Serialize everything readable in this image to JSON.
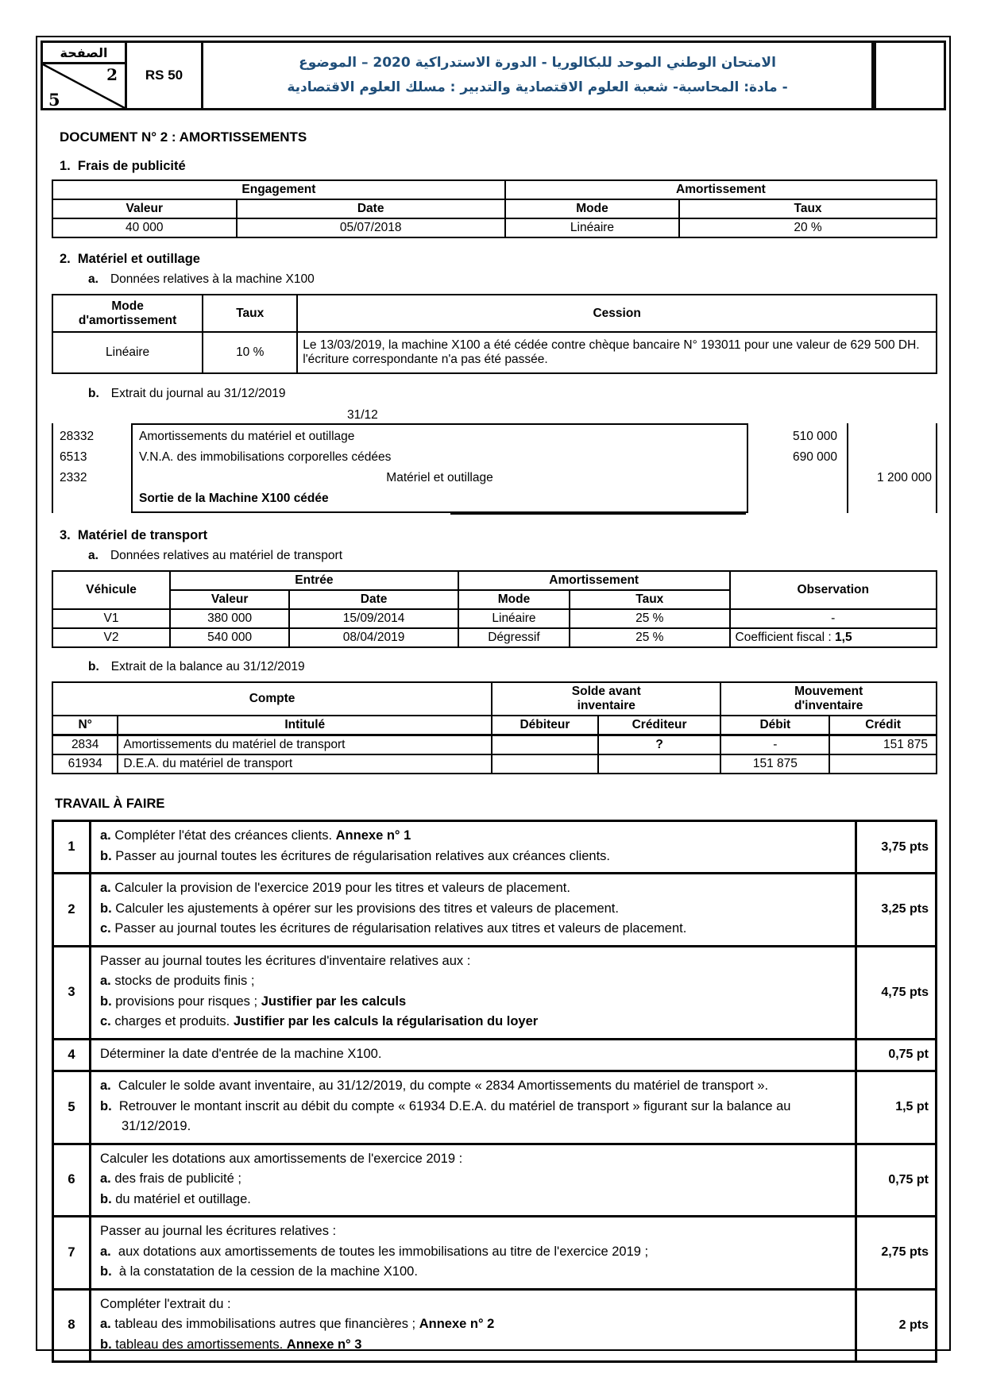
{
  "header": {
    "page_label": "الصفحة",
    "page_current": "2",
    "page_total": "5",
    "ref": "RS 50",
    "title_line1": "الامتحان الوطني الموحد للبكالوريا - الدورة الاستدراكية 2020 – الموضوع",
    "title_line2": "- مادة: المحاسبة- شعبة العلوم الاقتصادية والتدبير : مسلك العلوم الاقتصادية",
    "title_color": "#1f4e79"
  },
  "doc": {
    "title": "DOCUMENT N° 2 : AMORTISSEMENTS"
  },
  "section1": {
    "heading": "1.  Frais de publicité",
    "table": {
      "group_engagement": "Engagement",
      "group_amortissement": "Amortissement",
      "h_valeur": "Valeur",
      "h_date": "Date",
      "h_mode": "Mode",
      "h_taux": "Taux",
      "valeur": "40 000",
      "date": "05/07/2018",
      "mode": "Linéaire",
      "taux": "20 %"
    }
  },
  "section2": {
    "heading": "2.  Matériel et outillage",
    "sub_a_letter": "a.",
    "sub_a_text": "Données relatives à la machine X100",
    "machine_table": {
      "h_mode": "Mode\nd'amortissement",
      "h_taux": "Taux",
      "h_cession": "Cession",
      "mode": "Linéaire",
      "taux": "10 %",
      "cession": "Le 13/03/2019, la machine X100 a été cédée contre chèque bancaire N° 193011 pour une valeur de 629 500 DH. l'écriture correspondante n'a pas été passée."
    },
    "sub_b_letter": "b.",
    "sub_b_text": "Extrait du journal au 31/12/2019",
    "journal": {
      "date": "31/12",
      "lines": [
        {
          "account": "28332",
          "label": "Amortissements du matériel et outillage",
          "debit": "510 000",
          "credit": ""
        },
        {
          "account": "6513",
          "label": "V.N.A. des immobilisations corporelles cédées",
          "debit": "690 000",
          "credit": ""
        },
        {
          "account": "2332",
          "label": "Matériel et outillage",
          "debit": "",
          "credit": "1 200 000"
        }
      ],
      "caption": "Sortie de la Machine X100 cédée"
    }
  },
  "section3": {
    "heading": "3.  Matériel de transport",
    "sub_a_letter": "a.",
    "sub_a_text": "Données relatives au matériel de transport",
    "vehicles_table": {
      "h_vehicule": "Véhicule",
      "h_entree": "Entrée",
      "h_amortissement": "Amortissement",
      "h_observation": "Observation",
      "h_valeur": "Valeur",
      "h_date": "Date",
      "h_mode": "Mode",
      "h_taux": "Taux",
      "rows": [
        {
          "vehicule": "V1",
          "valeur": "380 000",
          "date": "15/09/2014",
          "mode": "Linéaire",
          "taux": "25 %",
          "observation": "-"
        },
        {
          "vehicule": "V2",
          "valeur": "540 000",
          "date": "08/04/2019",
          "mode": "Dégressif",
          "taux": "25 %",
          "observation_label": "Coefficient fiscal : ",
          "observation_value": "1,5"
        }
      ]
    },
    "sub_b_letter": "b.",
    "sub_b_text": "Extrait de la balance au 31/12/2019",
    "balance_table": {
      "h_compte": "Compte",
      "h_solde": "Solde avant\ninventaire",
      "h_mouvement": "Mouvement\nd'inventaire",
      "h_num": "N°",
      "h_intitule": "Intitulé",
      "h_debiteur": "Débiteur",
      "h_crediteur": "Créditeur",
      "h_debit": "Débit",
      "h_credit": "Crédit",
      "rows": [
        {
          "num": "2834",
          "intitule": "Amortissements du matériel de transport",
          "debiteur": "",
          "crediteur": "?",
          "debit": "-",
          "credit": "151 875"
        },
        {
          "num": "61934",
          "intitule": "D.E.A. du matériel de transport",
          "debiteur": "",
          "crediteur": "",
          "debit": "151 875",
          "credit": ""
        }
      ]
    }
  },
  "travail": {
    "heading": "TRAVAIL À FAIRE",
    "rows": [
      {
        "num": "1",
        "points": "3,75 pts",
        "lines": [
          [
            {
              "t": "a.",
              "b": 1
            },
            {
              "t": " Compléter l'état des créances clients. "
            },
            {
              "t": "Annexe n° 1",
              "b": 1
            }
          ],
          [
            {
              "t": "b.",
              "b": 1
            },
            {
              "t": " Passer au journal toutes les écritures de régularisation relatives aux créances clients."
            }
          ]
        ]
      },
      {
        "num": "2",
        "points": "3,25 pts",
        "lines": [
          [
            {
              "t": "a.",
              "b": 1
            },
            {
              "t": " Calculer la provision de l'exercice 2019 pour les titres et valeurs de placement."
            }
          ],
          [
            {
              "t": "b.",
              "b": 1
            },
            {
              "t": " Calculer les ajustements à opérer sur les provisions des titres et valeurs de placement."
            }
          ],
          [
            {
              "t": "c.",
              "b": 1
            },
            {
              "t": " Passer au journal toutes les écritures de régularisation relatives aux titres et valeurs de placement."
            }
          ]
        ]
      },
      {
        "num": "3",
        "points": "4,75 pts",
        "lines": [
          [
            {
              "t": "Passer au journal toutes les écritures d'inventaire relatives aux :"
            }
          ],
          [
            {
              "t": "a.",
              "b": 1
            },
            {
              "t": " stocks de produits finis ;"
            }
          ],
          [
            {
              "t": "b.",
              "b": 1
            },
            {
              "t": " provisions pour risques ; "
            },
            {
              "t": "Justifier par les calculs",
              "b": 1
            }
          ],
          [
            {
              "t": "c.",
              "b": 1
            },
            {
              "t": " charges et produits. "
            },
            {
              "t": "Justifier par les calculs la régularisation du loyer",
              "b": 1
            }
          ]
        ]
      },
      {
        "num": "4",
        "points": "0,75 pt",
        "lines": [
          [
            {
              "t": "Déterminer la date d'entrée de la machine X100."
            }
          ]
        ]
      },
      {
        "num": "5",
        "points": "1,5 pt",
        "lines": [
          [
            {
              "t": "a.",
              "b": 1
            },
            {
              "t": "  Calculer le solde avant inventaire, au 31/12/2019, du compte « 2834 Amortissements du matériel de transport »."
            }
          ],
          [
            {
              "t": "b.",
              "b": 1
            },
            {
              "t": "  Retrouver le montant inscrit au débit du compte « 61934 D.E.A. du matériel de transport » figurant sur la balance au 31/12/2019."
            }
          ]
        ]
      },
      {
        "num": "6",
        "points": "0,75 pt",
        "lines": [
          [
            {
              "t": "Calculer les dotations aux amortissements de l'exercice 2019 :"
            }
          ],
          [
            {
              "t": "a.",
              "b": 1
            },
            {
              "t": " des frais de publicité ;"
            }
          ],
          [
            {
              "t": "b.",
              "b": 1
            },
            {
              "t": " du matériel et outillage."
            }
          ]
        ]
      },
      {
        "num": "7",
        "points": "2,75 pts",
        "lines": [
          [
            {
              "t": "Passer au journal les écritures relatives :"
            }
          ],
          [
            {
              "t": "a.",
              "b": 1
            },
            {
              "t": "  aux dotations aux amortissements de toutes les immobilisations au titre de l'exercice 2019 ;"
            }
          ],
          [
            {
              "t": "b.",
              "b": 1
            },
            {
              "t": "  à la constatation de la cession de la machine X100."
            }
          ]
        ]
      },
      {
        "num": "8",
        "points": "2 pts",
        "lines": [
          [
            {
              "t": "Compléter l'extrait du :"
            }
          ],
          [
            {
              "t": "a.",
              "b": 1
            },
            {
              "t": " tableau des immobilisations autres que financières ; "
            },
            {
              "t": "Annexe n° 2",
              "b": 1
            }
          ],
          [
            {
              "t": "b.",
              "b": 1
            },
            {
              "t": " tableau des amortissements. "
            },
            {
              "t": "Annexe n° 3",
              "b": 1
            }
          ]
        ]
      }
    ]
  }
}
